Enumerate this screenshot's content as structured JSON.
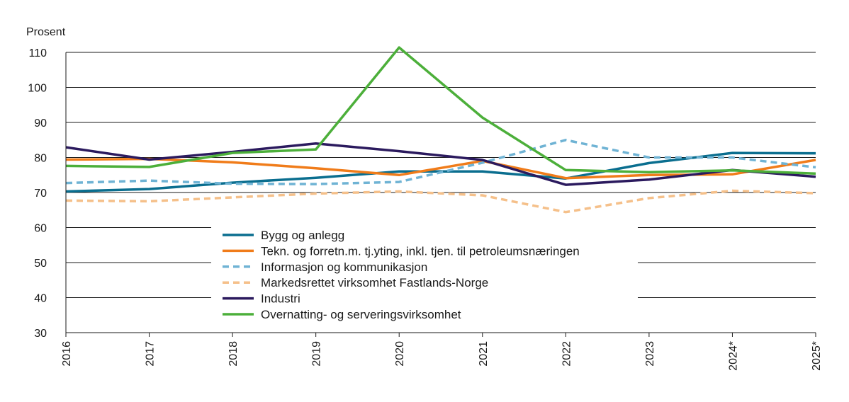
{
  "chart_data": {
    "type": "line",
    "title": "",
    "ylabel": "Prosent",
    "xlabel": "",
    "x": [
      "2016",
      "2017",
      "2018",
      "2019",
      "2020",
      "2021",
      "2022",
      "2023",
      "2024*",
      "2025*"
    ],
    "ylim": [
      30,
      110
    ],
    "yticks": [
      30,
      40,
      50,
      60,
      70,
      80,
      90,
      100,
      110
    ],
    "grid": "horizontal",
    "legend_position": "bottom-center",
    "series": [
      {
        "name": "Bygg og anlegg",
        "color": "#0a6e8f",
        "dash": false,
        "values": [
          70.3,
          71.0,
          72.8,
          74.2,
          76.0,
          76.0,
          74.0,
          78.4,
          81.3,
          81.2
        ]
      },
      {
        "name": "Tekn. og forretn.m. tj.yting, inkl. tjen. til petroleumsnæringen",
        "color": "#f07c1a",
        "dash": false,
        "values": [
          79.4,
          79.6,
          78.6,
          76.9,
          75.0,
          79.0,
          74.1,
          75.0,
          75.2,
          79.3
        ]
      },
      {
        "name": "Informasjon og kommunikasjon",
        "color": "#6fb3d4",
        "dash": true,
        "values": [
          72.7,
          73.4,
          72.5,
          72.4,
          73.0,
          78.5,
          85.0,
          80.0,
          80.0,
          77.2
        ]
      },
      {
        "name": "Markedsrettet virksomhet Fastlands-Norge",
        "color": "#f5c08a",
        "dash": true,
        "values": [
          67.7,
          67.5,
          68.6,
          69.7,
          70.3,
          69.2,
          64.4,
          68.4,
          70.5,
          69.8
        ]
      },
      {
        "name": "Industri",
        "color": "#2b1a5e",
        "dash": false,
        "values": [
          82.9,
          79.4,
          81.6,
          84.0,
          81.8,
          79.3,
          72.2,
          73.7,
          76.4,
          74.5
        ]
      },
      {
        "name": "Overnatting- og serveringsvirksomhet",
        "color": "#4caf3a",
        "dash": false,
        "values": [
          77.6,
          77.3,
          81.3,
          82.3,
          111.4,
          91.4,
          76.4,
          75.8,
          76.3,
          75.4
        ]
      }
    ]
  }
}
